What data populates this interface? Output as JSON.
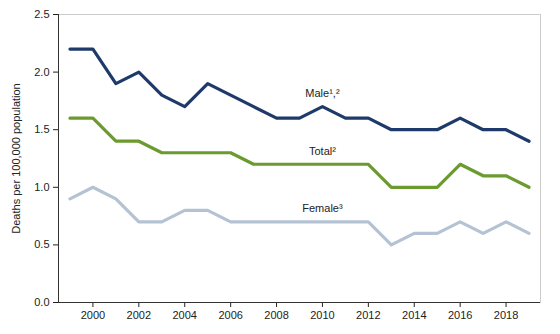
{
  "chart_data": {
    "type": "line",
    "y_label": "Deaths per 100,000 population",
    "x": [
      1999,
      2000,
      2001,
      2002,
      2003,
      2004,
      2005,
      2006,
      2007,
      2008,
      2009,
      2010,
      2011,
      2012,
      2013,
      2014,
      2015,
      2016,
      2017,
      2018,
      2019
    ],
    "series": [
      {
        "name": "Male¹,²",
        "color": "#1d3a6b",
        "values": [
          2.2,
          2.2,
          1.9,
          2.0,
          1.8,
          1.7,
          1.9,
          1.8,
          1.7,
          1.6,
          1.6,
          1.7,
          1.6,
          1.6,
          1.5,
          1.5,
          1.5,
          1.6,
          1.5,
          1.5,
          1.4
        ]
      },
      {
        "name": "Total²",
        "color": "#6b9a2e",
        "values": [
          1.6,
          1.6,
          1.4,
          1.4,
          1.3,
          1.3,
          1.3,
          1.3,
          1.2,
          1.2,
          1.2,
          1.2,
          1.2,
          1.2,
          1.0,
          1.0,
          1.0,
          1.2,
          1.1,
          1.1,
          1.0
        ]
      },
      {
        "name": "Female³",
        "color": "#b4c2d3",
        "values": [
          0.9,
          1.0,
          0.9,
          0.7,
          0.7,
          0.8,
          0.8,
          0.7,
          0.7,
          0.7,
          0.7,
          0.7,
          0.7,
          0.7,
          0.5,
          0.6,
          0.6,
          0.7,
          0.6,
          0.7,
          0.6
        ]
      }
    ],
    "xlim": [
      1998.5,
      2019.5
    ],
    "xticks": [
      2000,
      2002,
      2004,
      2006,
      2008,
      2010,
      2012,
      2014,
      2016,
      2018
    ],
    "ylim": [
      0,
      2.5
    ],
    "yticks": [
      {
        "value": 0,
        "label": "0.0"
      },
      0.5,
      {
        "value": 1,
        "label": "1.0"
      },
      1.5,
      {
        "value": 2,
        "label": "2.0"
      },
      2.5
    ],
    "grid": false
  }
}
